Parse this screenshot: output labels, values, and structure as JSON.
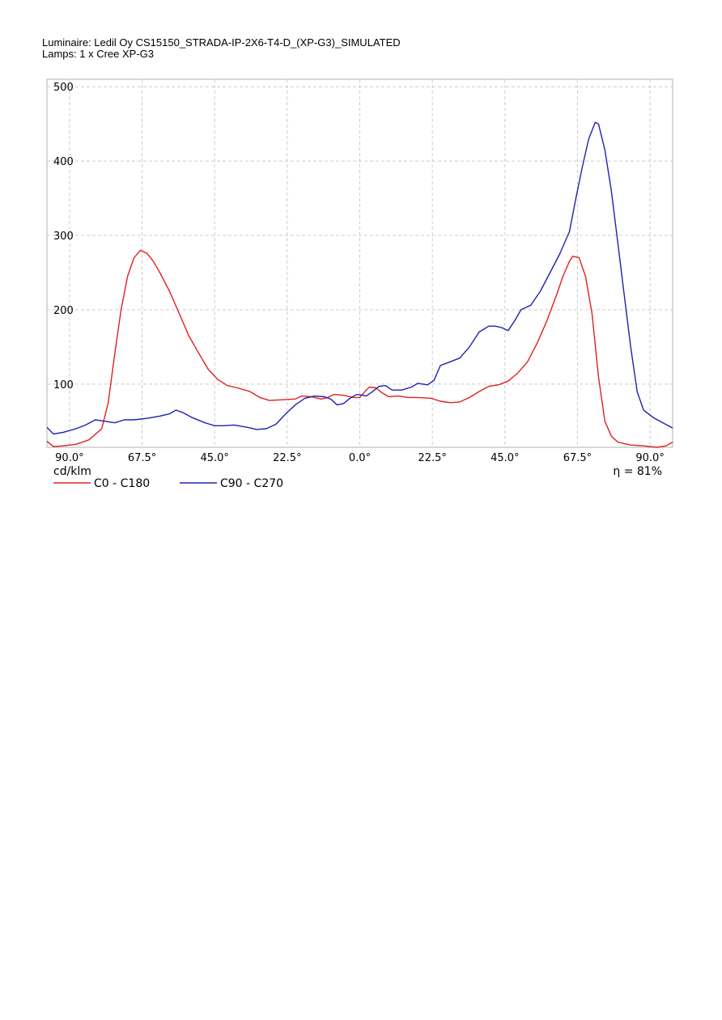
{
  "header": {
    "luminaire": "Luminaire: Ledil Oy CS15150_STRADA-IP-2X6-T4-D_(XP-G3)_SIMULATED",
    "lamps": "Lamps: 1 x Cree XP-G3"
  },
  "chart_data": {
    "type": "line",
    "unit_label": "cd/klm",
    "efficiency_label": "η = 81%",
    "ylim": [
      15,
      510
    ],
    "xlim": [
      -97,
      97
    ],
    "y_ticks": [
      100,
      200,
      300,
      400,
      500
    ],
    "x_ticks": [
      {
        "v": -90,
        "label": "90.0°"
      },
      {
        "v": -67.5,
        "label": "67.5°"
      },
      {
        "v": -45,
        "label": "45.0°"
      },
      {
        "v": -22.5,
        "label": "22.5°"
      },
      {
        "v": 0,
        "label": "0.0°"
      },
      {
        "v": 22.5,
        "label": "22.5°"
      },
      {
        "v": 45,
        "label": "45.0°"
      },
      {
        "v": 67.5,
        "label": "67.5°"
      },
      {
        "v": 90,
        "label": "90.0°"
      }
    ],
    "grid": true,
    "legend_position": "bottom-left",
    "series": [
      {
        "name": "C0 - C180",
        "color": "#e02020",
        "points": [
          [
            -97,
            23
          ],
          [
            -95,
            16
          ],
          [
            -92,
            17
          ],
          [
            -88,
            19
          ],
          [
            -84,
            25
          ],
          [
            -80,
            40
          ],
          [
            -78,
            75
          ],
          [
            -76,
            140
          ],
          [
            -74,
            200
          ],
          [
            -72,
            245
          ],
          [
            -70,
            270
          ],
          [
            -68,
            280
          ],
          [
            -66,
            276
          ],
          [
            -64,
            265
          ],
          [
            -62,
            250
          ],
          [
            -59,
            225
          ],
          [
            -56,
            195
          ],
          [
            -53,
            165
          ],
          [
            -50,
            142
          ],
          [
            -47,
            120
          ],
          [
            -44,
            106
          ],
          [
            -41,
            98
          ],
          [
            -38,
            95
          ],
          [
            -34,
            90
          ],
          [
            -31,
            82
          ],
          [
            -28,
            78
          ],
          [
            -24,
            79
          ],
          [
            -20,
            80
          ],
          [
            -18,
            84
          ],
          [
            -15,
            83
          ],
          [
            -12,
            80
          ],
          [
            -10,
            82
          ],
          [
            -8,
            86
          ],
          [
            -5,
            85
          ],
          [
            -2,
            82
          ],
          [
            0,
            82
          ],
          [
            2,
            92
          ],
          [
            3,
            96
          ],
          [
            5,
            95
          ],
          [
            7,
            88
          ],
          [
            9,
            83
          ],
          [
            12,
            84
          ],
          [
            15,
            82
          ],
          [
            18,
            82
          ],
          [
            22,
            81
          ],
          [
            25,
            77
          ],
          [
            28,
            75
          ],
          [
            31,
            76
          ],
          [
            34,
            82
          ],
          [
            37,
            90
          ],
          [
            40,
            97
          ],
          [
            43,
            99
          ],
          [
            46,
            104
          ],
          [
            49,
            115
          ],
          [
            52,
            130
          ],
          [
            55,
            155
          ],
          [
            58,
            185
          ],
          [
            61,
            220
          ],
          [
            63,
            245
          ],
          [
            65,
            265
          ],
          [
            66,
            272
          ],
          [
            68,
            270
          ],
          [
            70,
            245
          ],
          [
            72,
            195
          ],
          [
            74,
            110
          ],
          [
            76,
            50
          ],
          [
            78,
            30
          ],
          [
            80,
            22
          ],
          [
            84,
            18
          ],
          [
            88,
            17
          ],
          [
            92,
            15
          ],
          [
            95,
            17
          ],
          [
            97,
            22
          ]
        ]
      },
      {
        "name": "C90 - C270",
        "color": "#2020b0",
        "points": [
          [
            -97,
            42
          ],
          [
            -95,
            33
          ],
          [
            -92,
            35
          ],
          [
            -88,
            40
          ],
          [
            -85,
            45
          ],
          [
            -82,
            52
          ],
          [
            -79,
            50
          ],
          [
            -76,
            48
          ],
          [
            -73,
            52
          ],
          [
            -70,
            52
          ],
          [
            -66,
            54
          ],
          [
            -62,
            57
          ],
          [
            -59,
            60
          ],
          [
            -57,
            65
          ],
          [
            -55,
            62
          ],
          [
            -52,
            55
          ],
          [
            -48,
            48
          ],
          [
            -45,
            44
          ],
          [
            -42,
            44
          ],
          [
            -39,
            45
          ],
          [
            -35,
            42
          ],
          [
            -32,
            39
          ],
          [
            -29,
            40
          ],
          [
            -26,
            46
          ],
          [
            -23,
            60
          ],
          [
            -20,
            72
          ],
          [
            -17,
            81
          ],
          [
            -14,
            84
          ],
          [
            -11,
            83
          ],
          [
            -9,
            80
          ],
          [
            -7,
            72
          ],
          [
            -5,
            74
          ],
          [
            -3,
            81
          ],
          [
            -1,
            86
          ],
          [
            1,
            85
          ],
          [
            2,
            84
          ],
          [
            4,
            90
          ],
          [
            6,
            97
          ],
          [
            8,
            98
          ],
          [
            10,
            92
          ],
          [
            13,
            92
          ],
          [
            16,
            96
          ],
          [
            18,
            101
          ],
          [
            21,
            99
          ],
          [
            23,
            105
          ],
          [
            25,
            125
          ],
          [
            28,
            130
          ],
          [
            31,
            135
          ],
          [
            34,
            150
          ],
          [
            37,
            170
          ],
          [
            40,
            178
          ],
          [
            42,
            178
          ],
          [
            44,
            176
          ],
          [
            46,
            172
          ],
          [
            48,
            185
          ],
          [
            50,
            200
          ],
          [
            53,
            206
          ],
          [
            56,
            225
          ],
          [
            59,
            250
          ],
          [
            62,
            275
          ],
          [
            65,
            305
          ],
          [
            67,
            350
          ],
          [
            69,
            392
          ],
          [
            71,
            430
          ],
          [
            73,
            452
          ],
          [
            74,
            450
          ],
          [
            76,
            415
          ],
          [
            78,
            360
          ],
          [
            80,
            290
          ],
          [
            82,
            220
          ],
          [
            84,
            150
          ],
          [
            86,
            90
          ],
          [
            88,
            65
          ],
          [
            91,
            55
          ],
          [
            94,
            48
          ],
          [
            97,
            41
          ]
        ]
      }
    ]
  }
}
